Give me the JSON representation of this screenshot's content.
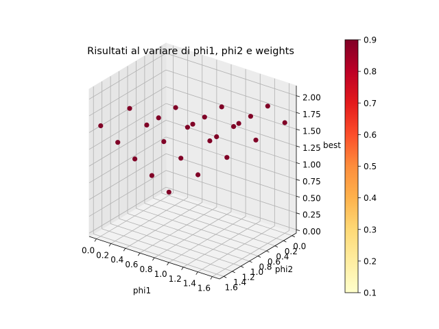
{
  "chart_data": {
    "type": "scatter",
    "title": "Risultati al variare di phi1, phi2 e weights",
    "xlabel": "phi1",
    "ylabel": "phi2",
    "zlabel": "best",
    "x_ticks": [
      "0.0",
      "0.2",
      "0.4",
      "0.6",
      "0.8",
      "1.0",
      "1.2",
      "1.4",
      "1.6"
    ],
    "y_ticks": [
      "0.0",
      "0.2",
      "0.4",
      "0.6",
      "0.8",
      "1.0",
      "1.2",
      "1.4",
      "1.6"
    ],
    "z_ticks": [
      "0.00",
      "0.25",
      "0.50",
      "0.75",
      "1.00",
      "1.25",
      "1.50",
      "1.75",
      "2.00"
    ],
    "xlim": [
      -0.1,
      1.7
    ],
    "ylim": [
      -0.1,
      1.7
    ],
    "zlim": [
      -0.05,
      2.15
    ],
    "colorbar": {
      "ticks": [
        "0.1",
        "0.2",
        "0.3",
        "0.4",
        "0.5",
        "0.6",
        "0.7",
        "0.8",
        "0.9"
      ],
      "range": [
        0.1,
        0.9
      ],
      "colormap": "YlOrRd"
    },
    "point_color": "#800026",
    "points": [
      {
        "phi1": 0.0,
        "phi2": 0.0,
        "best": 0.0,
        "weight": 0.9
      },
      {
        "phi1": 0.4,
        "phi2": 0.0,
        "best": 0.4,
        "weight": 0.9
      },
      {
        "phi1": 0.8,
        "phi2": 0.0,
        "best": 0.8,
        "weight": 0.9
      },
      {
        "phi1": 1.2,
        "phi2": 0.0,
        "best": 1.2,
        "weight": 0.9
      },
      {
        "phi1": 1.6,
        "phi2": 0.0,
        "best": 1.6,
        "weight": 0.9
      },
      {
        "phi1": 0.0,
        "phi2": 0.4,
        "best": 0.4,
        "weight": 0.9
      },
      {
        "phi1": 0.4,
        "phi2": 0.4,
        "best": 0.8,
        "weight": 0.9
      },
      {
        "phi1": 0.8,
        "phi2": 0.4,
        "best": 1.2,
        "weight": 0.9
      },
      {
        "phi1": 1.2,
        "phi2": 0.4,
        "best": 1.6,
        "weight": 0.9
      },
      {
        "phi1": 1.6,
        "phi2": 0.4,
        "best": 2.0,
        "weight": 0.9
      },
      {
        "phi1": 0.0,
        "phi2": 0.8,
        "best": 0.8,
        "weight": 0.9
      },
      {
        "phi1": 0.4,
        "phi2": 0.8,
        "best": 1.2,
        "weight": 0.9
      },
      {
        "phi1": 0.8,
        "phi2": 0.8,
        "best": 1.6,
        "weight": 0.9
      },
      {
        "phi1": 1.2,
        "phi2": 0.8,
        "best": 2.0,
        "weight": 0.9
      },
      {
        "phi1": 1.6,
        "phi2": 0.8,
        "best": 2.0,
        "weight": 0.9
      },
      {
        "phi1": 0.0,
        "phi2": 1.2,
        "best": 1.2,
        "weight": 0.9
      },
      {
        "phi1": 0.4,
        "phi2": 1.2,
        "best": 1.6,
        "weight": 0.9
      },
      {
        "phi1": 0.8,
        "phi2": 1.2,
        "best": 2.0,
        "weight": 0.9
      },
      {
        "phi1": 1.2,
        "phi2": 1.2,
        "best": 2.0,
        "weight": 0.9
      },
      {
        "phi1": 1.6,
        "phi2": 1.2,
        "best": 2.0,
        "weight": 0.9
      },
      {
        "phi1": 0.0,
        "phi2": 1.6,
        "best": 1.6,
        "weight": 0.9
      },
      {
        "phi1": 0.4,
        "phi2": 1.6,
        "best": 2.0,
        "weight": 0.9
      },
      {
        "phi1": 0.8,
        "phi2": 1.6,
        "best": 2.0,
        "weight": 0.9
      },
      {
        "phi1": 1.2,
        "phi2": 1.6,
        "best": 2.0,
        "weight": 0.9
      },
      {
        "phi1": 1.6,
        "phi2": 1.6,
        "best": 2.0,
        "weight": 0.9
      }
    ]
  }
}
